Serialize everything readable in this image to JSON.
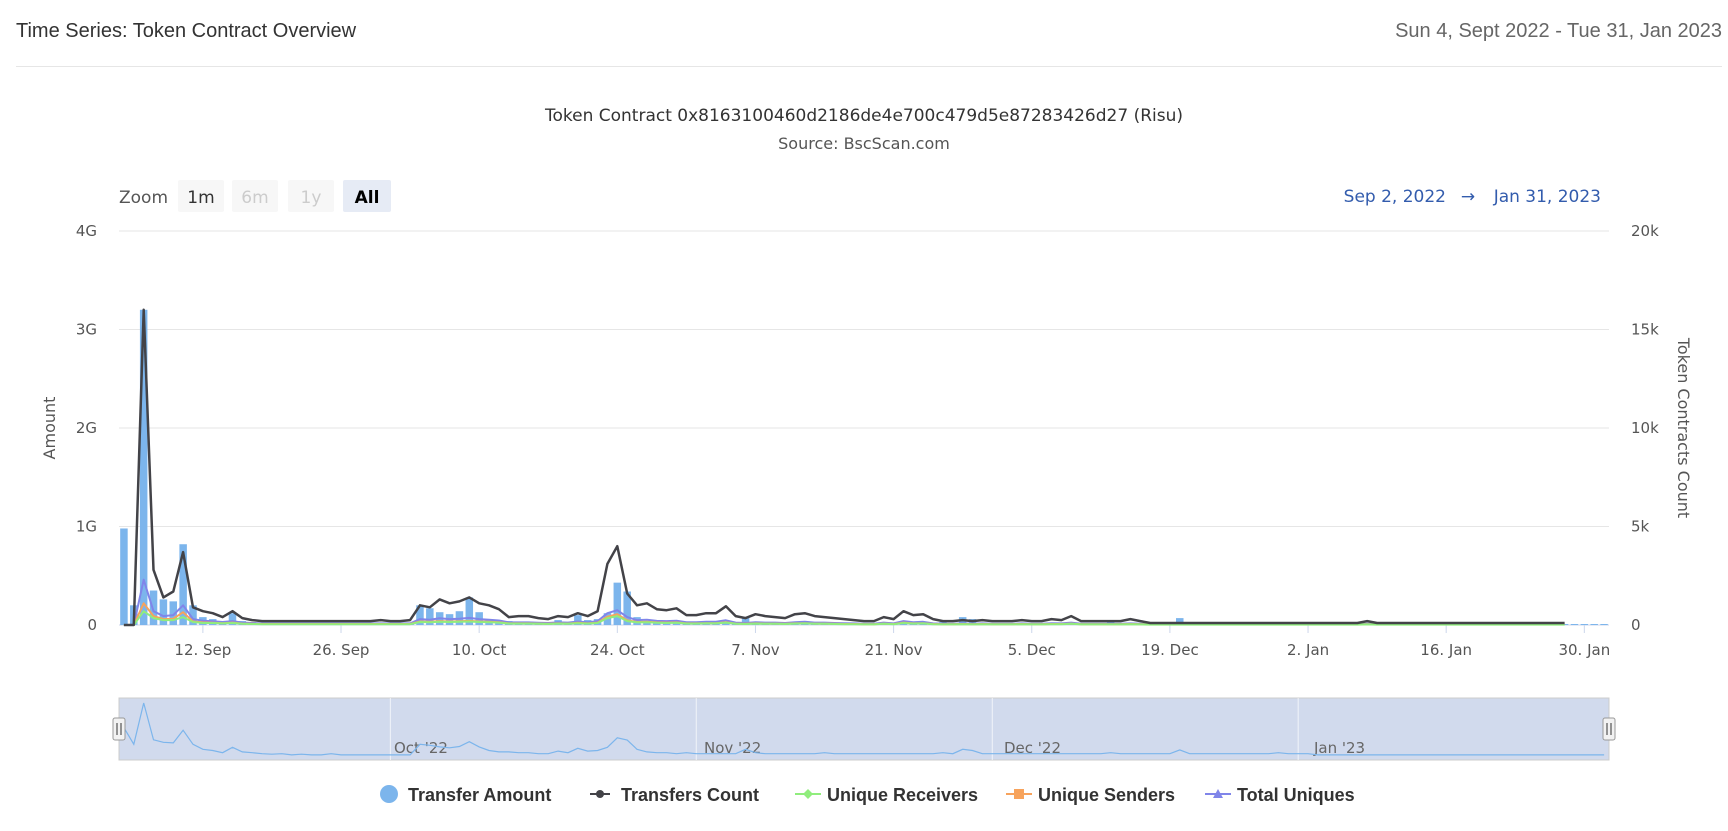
{
  "header": {
    "title": "Time Series: Token Contract Overview",
    "date_range": "Sun 4, Sept 2022 - Tue 31, Jan 2023"
  },
  "range_selector": {
    "zoom_label": "Zoom",
    "buttons": [
      {
        "label": "1m",
        "state": "normal"
      },
      {
        "label": "6m",
        "state": "disabled"
      },
      {
        "label": "1y",
        "state": "disabled"
      },
      {
        "label": "All",
        "state": "selected"
      }
    ],
    "from": "Sep 2, 2022",
    "arrow": "→",
    "to": "Jan 31, 2023"
  },
  "navigator": {
    "labels": [
      "Oct '22",
      "Nov '22",
      "Dec '22",
      "Jan '23"
    ]
  },
  "chart_data": {
    "type": "bar+line",
    "title": "Token Contract 0x8163100460d2186de4e700c479d5e87283426d27 (Risu)",
    "subtitle": "Source: BscScan.com",
    "y_left_label": "Amount",
    "y_right_label": "Token Contracts Count",
    "y_left_ticks": [
      "0",
      "1G",
      "2G",
      "3G",
      "4G"
    ],
    "y_right_ticks": [
      "0",
      "5k",
      "10k",
      "15k",
      "20k"
    ],
    "ylim_left": [
      0,
      4000000000
    ],
    "ylim_right": [
      0,
      20000
    ],
    "x_start": "2022-09-04",
    "x_ticks": [
      "12. Sep",
      "26. Sep",
      "10. Oct",
      "24. Oct",
      "7. Nov",
      "21. Nov",
      "5. Dec",
      "19. Dec",
      "2. Jan",
      "16. Jan",
      "30. Jan"
    ],
    "grid": true,
    "legend_position": "bottom",
    "colors": {
      "transfer_amount": "#7cb5ec",
      "transfers_count": "#434348",
      "unique_receivers": "#90ed7d",
      "unique_senders": "#f7a35c",
      "total_uniques": "#8085e9"
    },
    "series": [
      {
        "name": "Transfer Amount",
        "kind": "column",
        "axis": "left",
        "values": [
          980000000,
          200000000,
          3200000000,
          350000000,
          260000000,
          240000000,
          820000000,
          200000000,
          80000000,
          60000000,
          30000000,
          120000000,
          40000000,
          30000000,
          20000000,
          15000000,
          20000000,
          10000000,
          15000000,
          10000000,
          10000000,
          20000000,
          10000000,
          10000000,
          10000000,
          10000000,
          10000000,
          10000000,
          10000000,
          10000000,
          200000000,
          170000000,
          130000000,
          110000000,
          140000000,
          280000000,
          130000000,
          60000000,
          40000000,
          40000000,
          30000000,
          30000000,
          20000000,
          20000000,
          50000000,
          30000000,
          100000000,
          50000000,
          60000000,
          120000000,
          430000000,
          340000000,
          80000000,
          40000000,
          30000000,
          30000000,
          20000000,
          30000000,
          20000000,
          20000000,
          20000000,
          20000000,
          20000000,
          80000000,
          30000000,
          20000000,
          20000000,
          20000000,
          20000000,
          20000000,
          20000000,
          30000000,
          20000000,
          20000000,
          20000000,
          20000000,
          20000000,
          20000000,
          20000000,
          20000000,
          20000000,
          20000000,
          20000000,
          30000000,
          20000000,
          80000000,
          60000000,
          20000000,
          20000000,
          20000000,
          20000000,
          20000000,
          20000000,
          20000000,
          20000000,
          20000000,
          20000000,
          20000000,
          20000000,
          20000000,
          30000000,
          20000000,
          20000000,
          20000000,
          20000000,
          20000000,
          20000000,
          70000000,
          20000000,
          20000000,
          20000000,
          20000000,
          20000000,
          20000000,
          20000000,
          20000000,
          20000000,
          30000000,
          20000000,
          20000000,
          20000000,
          10000000,
          10000000,
          10000000,
          10000000,
          10000000,
          10000000,
          10000000,
          10000000,
          10000000,
          10000000,
          10000000,
          10000000,
          10000000,
          10000000,
          10000000,
          10000000,
          10000000,
          10000000,
          10000000,
          10000000,
          10000000,
          10000000,
          10000000,
          10000000,
          10000000,
          10000000,
          10000000,
          10000000,
          10000000,
          10000000
        ]
      },
      {
        "name": "Transfers Count",
        "kind": "line",
        "axis": "right",
        "values": [
          0,
          0,
          16000,
          2800,
          1400,
          1700,
          3700,
          900,
          700,
          600,
          400,
          700,
          350,
          250,
          200,
          200,
          200,
          200,
          200,
          200,
          200,
          200,
          200,
          200,
          200,
          200,
          250,
          200,
          200,
          250,
          1000,
          900,
          1300,
          1100,
          1200,
          1400,
          1100,
          1000,
          800,
          400,
          450,
          450,
          350,
          300,
          450,
          400,
          600,
          450,
          700,
          3100,
          4000,
          1600,
          1000,
          1100,
          800,
          750,
          850,
          500,
          500,
          600,
          600,
          950,
          450,
          350,
          550,
          450,
          400,
          350,
          550,
          600,
          450,
          400,
          350,
          300,
          250,
          200,
          200,
          400,
          300,
          700,
          500,
          550,
          300,
          200,
          200,
          250,
          200,
          250,
          200,
          200,
          200,
          250,
          200,
          200,
          300,
          250,
          450,
          200,
          200,
          200,
          200,
          200,
          300,
          200,
          100,
          100,
          100,
          100,
          100,
          100,
          100,
          100,
          100,
          100,
          100,
          100,
          100,
          100,
          100,
          100,
          100,
          100,
          100,
          100,
          100,
          100,
          200,
          100,
          100,
          100,
          100,
          100,
          100,
          100,
          100,
          100,
          100,
          100,
          100,
          100,
          100,
          100,
          100,
          100,
          100,
          100,
          100
        ]
      },
      {
        "name": "Unique Receivers",
        "kind": "line",
        "axis": "right",
        "values": [
          0,
          0,
          700,
          350,
          250,
          250,
          400,
          150,
          100,
          100,
          80,
          100,
          60,
          50,
          40,
          40,
          40,
          40,
          40,
          40,
          40,
          40,
          40,
          40,
          40,
          40,
          40,
          40,
          40,
          40,
          150,
          140,
          170,
          150,
          160,
          180,
          150,
          140,
          120,
          70,
          70,
          70,
          60,
          50,
          70,
          60,
          90,
          70,
          100,
          350,
          450,
          200,
          130,
          140,
          110,
          100,
          110,
          70,
          70,
          80,
          80,
          120,
          60,
          50,
          70,
          60,
          60,
          50,
          70,
          80,
          60,
          60,
          50,
          40,
          40,
          30,
          30,
          60,
          40,
          100,
          70,
          80,
          40,
          30,
          30,
          40,
          30,
          40,
          30,
          30,
          30,
          40,
          30,
          30,
          40,
          40,
          60,
          30,
          30,
          30,
          30,
          30,
          40,
          30,
          20,
          20,
          20,
          20,
          20,
          20,
          20,
          20,
          20,
          20,
          20,
          20,
          20,
          20,
          20,
          20,
          20,
          20,
          20,
          20,
          20,
          20,
          30,
          20,
          20,
          20,
          20,
          20,
          20,
          20,
          20,
          20,
          20,
          20,
          20,
          20,
          20,
          20,
          20,
          20,
          20,
          20,
          20
        ]
      },
      {
        "name": "Unique Senders",
        "kind": "line",
        "axis": "right",
        "values": [
          0,
          0,
          1100,
          450,
          300,
          320,
          650,
          180,
          130,
          110,
          90,
          120,
          70,
          60,
          50,
          50,
          50,
          50,
          50,
          50,
          50,
          50,
          50,
          50,
          50,
          50,
          50,
          50,
          50,
          50,
          180,
          160,
          200,
          180,
          190,
          210,
          180,
          160,
          140,
          80,
          80,
          80,
          70,
          60,
          80,
          70,
          110,
          80,
          120,
          420,
          550,
          240,
          150,
          160,
          130,
          120,
          130,
          80,
          80,
          90,
          90,
          140,
          70,
          60,
          80,
          70,
          70,
          60,
          80,
          90,
          70,
          70,
          60,
          50,
          50,
          40,
          40,
          70,
          50,
          120,
          80,
          90,
          50,
          40,
          40,
          50,
          40,
          50,
          40,
          40,
          40,
          50,
          40,
          40,
          50,
          50,
          70,
          40,
          40,
          40,
          40,
          40,
          50,
          40,
          30,
          30,
          30,
          30,
          30,
          30,
          30,
          30,
          30,
          30,
          30,
          30,
          30,
          30,
          30,
          30,
          30,
          30,
          30,
          30,
          30,
          30,
          40,
          30,
          30,
          30,
          30,
          30,
          30,
          30,
          30,
          30,
          30,
          30,
          30,
          30,
          30,
          30,
          30,
          30,
          30,
          30,
          30
        ]
      },
      {
        "name": "Total Uniques",
        "kind": "line",
        "axis": "right",
        "values": [
          0,
          0,
          2300,
          700,
          450,
          500,
          1000,
          300,
          220,
          190,
          150,
          200,
          120,
          100,
          80,
          80,
          80,
          80,
          80,
          80,
          80,
          80,
          80,
          80,
          80,
          80,
          80,
          80,
          80,
          80,
          300,
          270,
          340,
          300,
          320,
          360,
          300,
          270,
          230,
          130,
          130,
          130,
          110,
          100,
          130,
          120,
          180,
          130,
          200,
          600,
          750,
          400,
          250,
          270,
          210,
          200,
          220,
          140,
          140,
          160,
          160,
          240,
          120,
          100,
          140,
          120,
          120,
          100,
          140,
          160,
          120,
          120,
          100,
          90,
          80,
          60,
          60,
          120,
          80,
          200,
          140,
          160,
          80,
          60,
          60,
          80,
          60,
          80,
          60,
          60,
          60,
          80,
          60,
          60,
          90,
          80,
          120,
          60,
          60,
          60,
          60,
          60,
          80,
          60,
          40,
          40,
          40,
          40,
          40,
          40,
          40,
          40,
          40,
          40,
          40,
          40,
          40,
          40,
          40,
          40,
          40,
          40,
          40,
          40,
          40,
          40,
          60,
          40,
          40,
          40,
          40,
          40,
          40,
          40,
          40,
          40,
          40,
          40,
          40,
          40,
          40,
          40,
          40,
          40,
          40,
          40,
          40
        ]
      }
    ],
    "navigator_series": "Transfer Amount"
  }
}
